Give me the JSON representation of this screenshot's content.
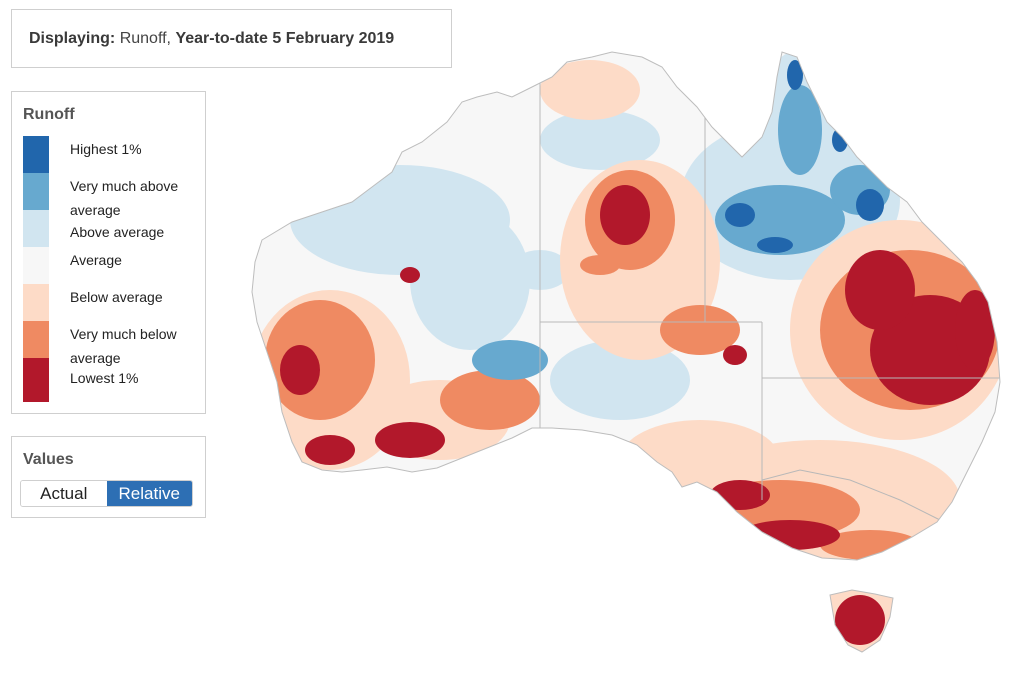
{
  "display": {
    "prefix": "Displaying:",
    "variable": "Runoff,",
    "period": "Year-to-date 5 February 2019"
  },
  "legend": {
    "title": "Runoff",
    "items": [
      {
        "label": "Highest 1%",
        "color": "#2166ac"
      },
      {
        "label": "Very much above average",
        "color": "#67a9cf"
      },
      {
        "label": "Above average",
        "color": "#d1e5f0"
      },
      {
        "label": "Average",
        "color": "#f7f7f7"
      },
      {
        "label": "Below average",
        "color": "#fddbc7"
      },
      {
        "label": "Very much below average",
        "color": "#ef8a62"
      },
      {
        "label": "Lowest 1%",
        "color": "#b2182b"
      }
    ]
  },
  "values": {
    "title": "Values",
    "options": [
      "Actual",
      "Relative"
    ],
    "selected": "Relative"
  }
}
